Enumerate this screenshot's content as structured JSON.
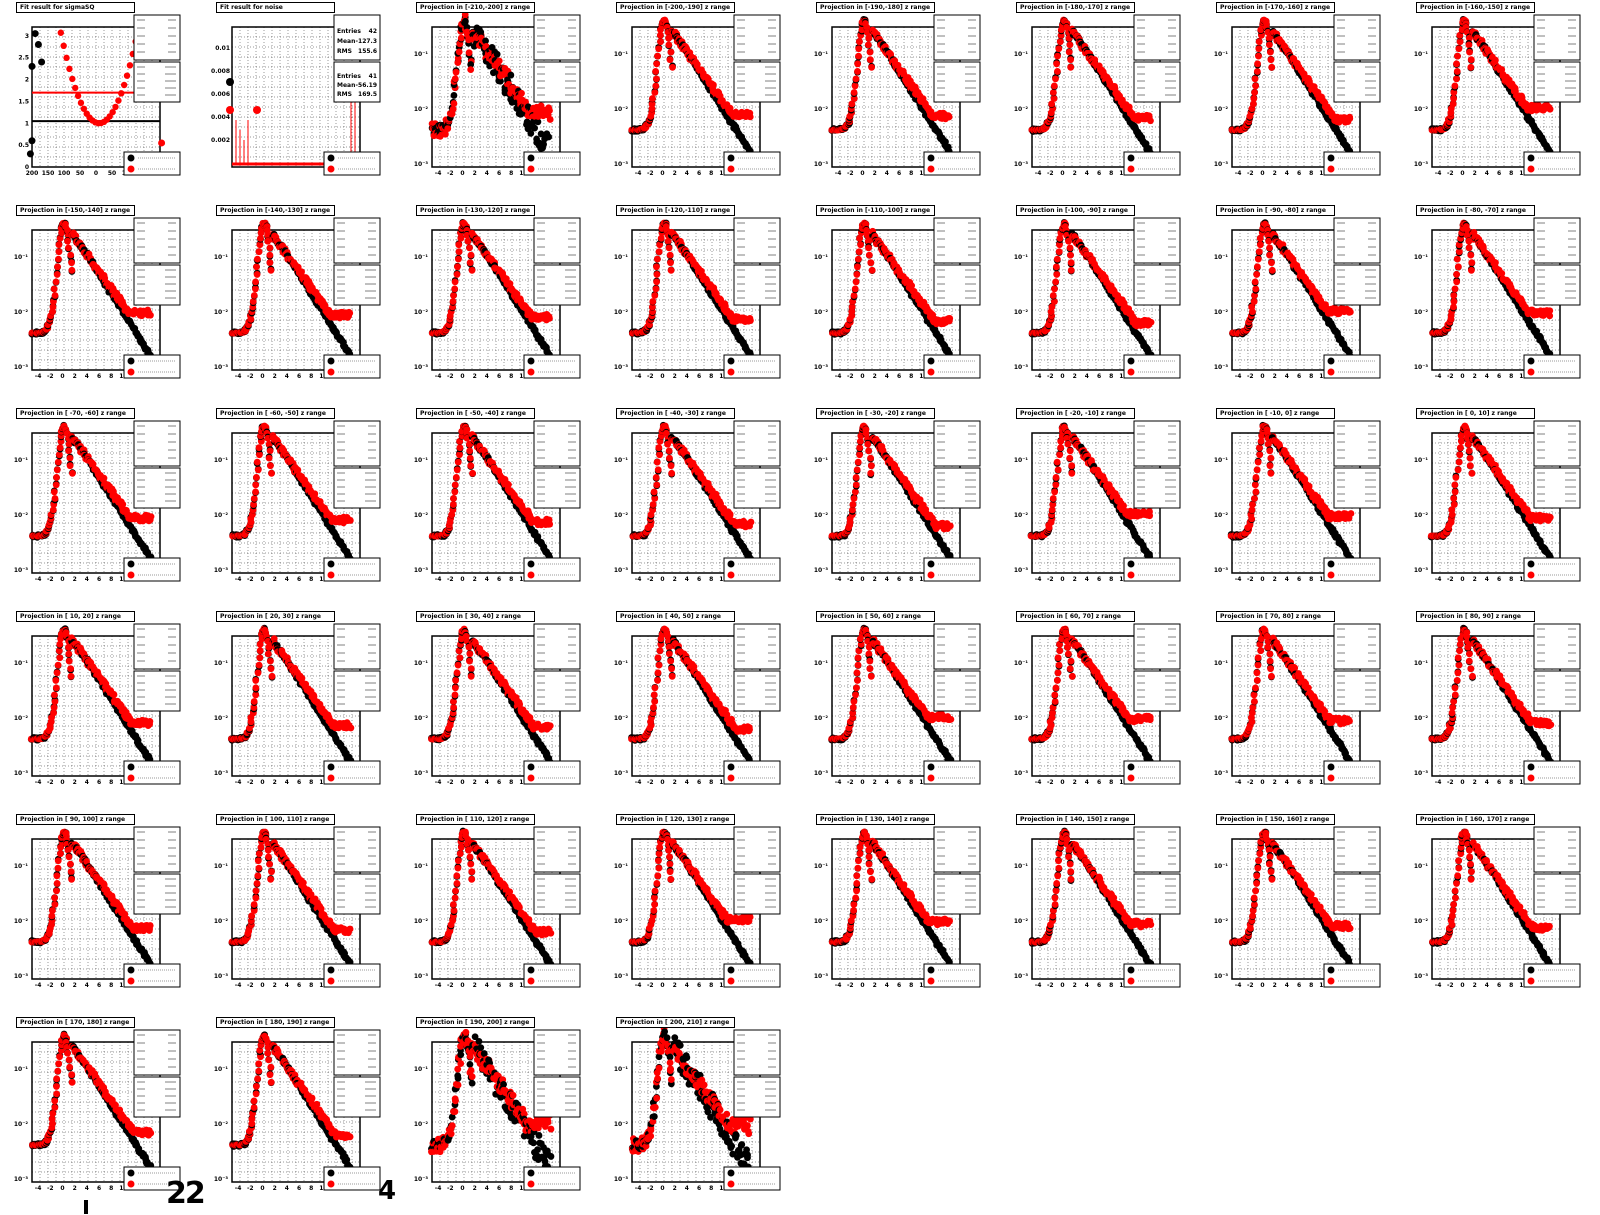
{
  "colors": {
    "black": "#000000",
    "red": "#ff0000",
    "grid": "#000000"
  },
  "chart_data": [
    {
      "type": "scatter",
      "title": "Fit result for sigmaSQ",
      "x_ticks": [
        "200",
        "150",
        "100",
        "50",
        "0",
        "50",
        "100",
        "150",
        "200"
      ],
      "y_ticks": [
        "0",
        "0.5",
        "1",
        "1.5",
        "2",
        "2.5",
        "3"
      ],
      "ylim": [
        0,
        3.2
      ],
      "lines": [
        {
          "color": "red",
          "y": 1.7
        },
        {
          "color": "black",
          "y": 1.05
        }
      ],
      "series": [
        {
          "color": "black",
          "curve": "parabola"
        },
        {
          "color": "red",
          "curve": "parabola"
        }
      ]
    },
    {
      "type": "bar",
      "title": "Fit result for noise",
      "y_ticks": [
        "0.01",
        "0.008",
        "0.006",
        "0.004",
        "0.002"
      ],
      "stats": [
        {
          "label": "Entries",
          "value": "42"
        },
        {
          "label": "Mean",
          "value": "-127.3"
        },
        {
          "label": "RMS",
          "value": "155.6"
        },
        {
          "label": "Entries",
          "value": "41"
        },
        {
          "label": "Mean",
          "value": "-56.19"
        },
        {
          "label": "RMS",
          "value": "169.5"
        }
      ]
    },
    {
      "type": "scatter",
      "title": "Projection in [-210,-200] z range",
      "variant": "edge"
    },
    {
      "type": "scatter",
      "title": "Projection in [-200,-190] z range"
    },
    {
      "type": "scatter",
      "title": "Projection in [-190,-180] z range"
    },
    {
      "type": "scatter",
      "title": "Projection in [-180,-170] z range"
    },
    {
      "type": "scatter",
      "title": "Projection in [-170,-160] z range"
    },
    {
      "type": "scatter",
      "title": "Projection in [-160,-150] z range"
    },
    {
      "type": "scatter",
      "title": "Projection in [-150,-140] z range"
    },
    {
      "type": "scatter",
      "title": "Projection in [-140,-130] z range"
    },
    {
      "type": "scatter",
      "title": "Projection in [-130,-120] z range"
    },
    {
      "type": "scatter",
      "title": "Projection in [-120,-110] z range"
    },
    {
      "type": "scatter",
      "title": "Projection in [-110,-100] z range"
    },
    {
      "type": "scatter",
      "title": "Projection in [-100, -90] z range"
    },
    {
      "type": "scatter",
      "title": "Projection in [ -90, -80] z range"
    },
    {
      "type": "scatter",
      "title": "Projection in [ -80, -70] z range"
    },
    {
      "type": "scatter",
      "title": "Projection in [ -70, -60] z range"
    },
    {
      "type": "scatter",
      "title": "Projection in [ -60, -50] z range"
    },
    {
      "type": "scatter",
      "title": "Projection in [ -50, -40] z range"
    },
    {
      "type": "scatter",
      "title": "Projection in [ -40, -30] z range"
    },
    {
      "type": "scatter",
      "title": "Projection in [ -30, -20] z range"
    },
    {
      "type": "scatter",
      "title": "Projection in [ -20, -10] z range"
    },
    {
      "type": "scatter",
      "title": "Projection in [ -10,   0] z range"
    },
    {
      "type": "scatter",
      "title": "Projection in [   0,  10] z range"
    },
    {
      "type": "scatter",
      "title": "Projection in [  10,  20] z range"
    },
    {
      "type": "scatter",
      "title": "Projection in [  20,  30] z range"
    },
    {
      "type": "scatter",
      "title": "Projection in [  30,  40] z range"
    },
    {
      "type": "scatter",
      "title": "Projection in [  40,  50] z range"
    },
    {
      "type": "scatter",
      "title": "Projection in [  50,  60] z range"
    },
    {
      "type": "scatter",
      "title": "Projection in [  60,  70] z range"
    },
    {
      "type": "scatter",
      "title": "Projection in [  70,  80] z range"
    },
    {
      "type": "scatter",
      "title": "Projection in [  80,  90] z range"
    },
    {
      "type": "scatter",
      "title": "Projection in [  90, 100] z range"
    },
    {
      "type": "scatter",
      "title": "Projection in [ 100, 110] z range"
    },
    {
      "type": "scatter",
      "title": "Projection in [ 110, 120] z range"
    },
    {
      "type": "scatter",
      "title": "Projection in [ 120, 130] z range"
    },
    {
      "type": "scatter",
      "title": "Projection in [ 130, 140] z range"
    },
    {
      "type": "scatter",
      "title": "Projection in [ 140, 150] z range"
    },
    {
      "type": "scatter",
      "title": "Projection in [ 150, 160] z range"
    },
    {
      "type": "scatter",
      "title": "Projection in [ 160, 170] z range"
    },
    {
      "type": "scatter",
      "title": "Projection in [ 170, 180] z range"
    },
    {
      "type": "scatter",
      "title": "Projection in [ 180, 190] z range"
    },
    {
      "type": "scatter",
      "title": "Projection in [ 190, 200] z range",
      "variant": "edge"
    },
    {
      "type": "scatter",
      "title": "Projection in [ 200, 210] z range",
      "variant": "edge2"
    }
  ],
  "projection_axes": {
    "x_ticks": [
      "-4",
      "-2",
      "0",
      "2",
      "4",
      "6",
      "8",
      "10",
      "12",
      "14"
    ],
    "y_ticks": [
      "10⁻¹",
      "10⁻²",
      "10⁻³"
    ]
  },
  "fragments": {
    "a": "22",
    "b": "4"
  }
}
